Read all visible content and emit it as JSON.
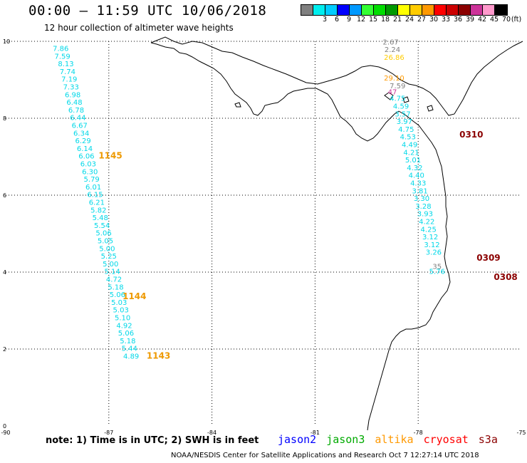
{
  "header": {
    "title": "00:00 — 11:59 UTC 10/06/2018",
    "subtitle": "12 hour collection of altimeter wave heights"
  },
  "colorbar": {
    "unit": "(ft)",
    "bins": [
      {
        "label": "",
        "color": "#808080"
      },
      {
        "label": "3",
        "color": "#00eeee"
      },
      {
        "label": "6",
        "color": "#00ccff"
      },
      {
        "label": "9",
        "color": "#0000ff"
      },
      {
        "label": "12",
        "color": "#0099ff"
      },
      {
        "label": "15",
        "color": "#33ff33"
      },
      {
        "label": "18",
        "color": "#00dd00"
      },
      {
        "label": "21",
        "color": "#009900"
      },
      {
        "label": "24",
        "color": "#ffff00"
      },
      {
        "label": "27",
        "color": "#ffcc00"
      },
      {
        "label": "30",
        "color": "#ff9900"
      },
      {
        "label": "33",
        "color": "#ff0000"
      },
      {
        "label": "36",
        "color": "#cc0000"
      },
      {
        "label": "39",
        "color": "#8b0000"
      },
      {
        "label": "42",
        "color": "#cc3399"
      },
      {
        "label": "45",
        "color": "#ff99cc"
      },
      {
        "label": "70",
        "color": "#000000"
      }
    ]
  },
  "axes": {
    "x_ticks": [
      "-90",
      "-87",
      "-84",
      "-81",
      "-78",
      "-75"
    ],
    "y_ticks": [
      "0",
      "2",
      "4",
      "6",
      "8",
      "10"
    ],
    "xlim": [
      -90,
      -75
    ],
    "ylim": [
      0,
      10
    ],
    "grid": "dotted"
  },
  "tracks": [
    {
      "satellite": "jason3",
      "color": "#00d8e8",
      "readings": [
        {
          "lon": -88.4,
          "lat": 9.75,
          "swh": "7.86"
        },
        {
          "lon": -88.35,
          "lat": 9.55,
          "swh": "7.59"
        },
        {
          "lon": -88.25,
          "lat": 9.35,
          "swh": "8.13"
        },
        {
          "lon": -88.2,
          "lat": 9.15,
          "swh": "7.74"
        },
        {
          "lon": -88.15,
          "lat": 8.95,
          "swh": "7.19"
        },
        {
          "lon": -88.1,
          "lat": 8.75,
          "swh": "7.33"
        },
        {
          "lon": -88.05,
          "lat": 8.55,
          "swh": "6.98"
        },
        {
          "lon": -88.0,
          "lat": 8.35,
          "swh": "6.48"
        },
        {
          "lon": -87.95,
          "lat": 8.15,
          "swh": "6.78"
        },
        {
          "lon": -87.9,
          "lat": 7.95,
          "swh": "6.44"
        },
        {
          "lon": -87.85,
          "lat": 7.75,
          "swh": "6.67"
        },
        {
          "lon": -87.8,
          "lat": 7.55,
          "swh": "6.34"
        },
        {
          "lon": -87.75,
          "lat": 7.35,
          "swh": "6.29"
        },
        {
          "lon": -87.7,
          "lat": 7.15,
          "swh": "6.14"
        },
        {
          "lon": -87.65,
          "lat": 6.95,
          "swh": "6.06"
        },
        {
          "lon": -87.6,
          "lat": 6.75,
          "swh": "6.03"
        },
        {
          "lon": -87.55,
          "lat": 6.55,
          "swh": "6.30"
        },
        {
          "lon": -87.5,
          "lat": 6.35,
          "swh": "5.79"
        },
        {
          "lon": -87.45,
          "lat": 6.15,
          "swh": "6.01"
        },
        {
          "lon": -87.4,
          "lat": 5.95,
          "swh": "6.15"
        },
        {
          "lon": -87.35,
          "lat": 5.75,
          "swh": "6.21"
        },
        {
          "lon": -87.3,
          "lat": 5.55,
          "swh": "5.82"
        },
        {
          "lon": -87.25,
          "lat": 5.35,
          "swh": "5.48"
        },
        {
          "lon": -87.2,
          "lat": 5.15,
          "swh": "5.54"
        },
        {
          "lon": -87.15,
          "lat": 4.95,
          "swh": "5.06"
        },
        {
          "lon": -87.1,
          "lat": 4.75,
          "swh": "5.05"
        },
        {
          "lon": -87.05,
          "lat": 4.55,
          "swh": "5.00"
        },
        {
          "lon": -87.0,
          "lat": 4.35,
          "swh": "5.25"
        },
        {
          "lon": -86.95,
          "lat": 4.15,
          "swh": "5.00"
        },
        {
          "lon": -86.9,
          "lat": 3.95,
          "swh": "5.14"
        },
        {
          "lon": -86.85,
          "lat": 3.75,
          "swh": "4.72"
        },
        {
          "lon": -86.8,
          "lat": 3.55,
          "swh": "5.18"
        },
        {
          "lon": -86.75,
          "lat": 3.35,
          "swh": "5.06"
        },
        {
          "lon": -86.7,
          "lat": 3.15,
          "swh": "5.03"
        },
        {
          "lon": -86.65,
          "lat": 2.95,
          "swh": "5.03"
        },
        {
          "lon": -86.6,
          "lat": 2.75,
          "swh": "5.10"
        },
        {
          "lon": -86.55,
          "lat": 2.55,
          "swh": "4.92"
        },
        {
          "lon": -86.5,
          "lat": 2.35,
          "swh": "5.06"
        },
        {
          "lon": -86.45,
          "lat": 2.15,
          "swh": "5.18"
        },
        {
          "lon": -86.4,
          "lat": 1.95,
          "swh": "5.44"
        },
        {
          "lon": -86.35,
          "lat": 1.75,
          "swh": "4.89"
        }
      ],
      "time_labels": [
        {
          "lon": -87.3,
          "lat": 6.95,
          "text": "1145",
          "color": "#ee9900"
        },
        {
          "lon": -86.6,
          "lat": 3.3,
          "text": "1144",
          "color": "#ee9900"
        },
        {
          "lon": -85.9,
          "lat": 1.75,
          "text": "1143",
          "color": "#ee9900"
        }
      ]
    },
    {
      "satellite": "jason3",
      "color": "#00d8e8",
      "readings": [
        {
          "lon": -78.6,
          "lat": 8.45,
          "swh": "4.75"
        },
        {
          "lon": -78.5,
          "lat": 8.25,
          "swh": "4.59"
        },
        {
          "lon": -78.45,
          "lat": 8.05,
          "swh": "3.57"
        },
        {
          "lon": -78.4,
          "lat": 7.85,
          "swh": "3.97"
        },
        {
          "lon": -78.35,
          "lat": 7.65,
          "swh": "4.75"
        },
        {
          "lon": -78.3,
          "lat": 7.45,
          "swh": "4.53"
        },
        {
          "lon": -78.25,
          "lat": 7.25,
          "swh": "4.49"
        },
        {
          "lon": -78.2,
          "lat": 7.05,
          "swh": "4.21"
        },
        {
          "lon": -78.15,
          "lat": 6.85,
          "swh": "5.01"
        },
        {
          "lon": -78.1,
          "lat": 6.65,
          "swh": "4.32"
        },
        {
          "lon": -78.05,
          "lat": 6.45,
          "swh": "4.40"
        },
        {
          "lon": -78.0,
          "lat": 6.25,
          "swh": "4.33"
        },
        {
          "lon": -77.95,
          "lat": 6.05,
          "swh": "3.81"
        },
        {
          "lon": -77.9,
          "lat": 5.85,
          "swh": "3.30"
        },
        {
          "lon": -77.85,
          "lat": 5.65,
          "swh": "3.28"
        },
        {
          "lon": -77.8,
          "lat": 5.45,
          "swh": "3.93"
        },
        {
          "lon": -77.75,
          "lat": 5.25,
          "swh": "4.22"
        },
        {
          "lon": -77.7,
          "lat": 5.05,
          "swh": "4.25"
        },
        {
          "lon": -77.65,
          "lat": 4.85,
          "swh": "3.12"
        },
        {
          "lon": -77.6,
          "lat": 4.65,
          "swh": "3.12"
        },
        {
          "lon": -77.55,
          "lat": 4.45,
          "swh": "3.26"
        },
        {
          "lon": -77.45,
          "lat": 3.95,
          "swh": "5.76"
        }
      ],
      "time_labels": [
        {
          "lon": -76.8,
          "lat": 7.5,
          "text": "0310",
          "color": "#8b0000"
        },
        {
          "lon": -76.3,
          "lat": 4.3,
          "text": "0309",
          "color": "#8b0000"
        },
        {
          "lon": -75.8,
          "lat": 3.8,
          "text": "0308",
          "color": "#8b0000"
        }
      ]
    },
    {
      "satellite": "misc",
      "color": "#808080",
      "readings": [
        {
          "lon": -78.8,
          "lat": 9.92,
          "swh": "2.67",
          "color": "#808080"
        },
        {
          "lon": -78.75,
          "lat": 9.72,
          "swh": "2.24",
          "color": "#808080"
        },
        {
          "lon": -78.7,
          "lat": 9.52,
          "swh": "26.86",
          "color": "#ffcc00"
        },
        {
          "lon": -78.7,
          "lat": 8.98,
          "swh": "29.10",
          "color": "#ff9900"
        },
        {
          "lon": -78.6,
          "lat": 8.78,
          "swh": "7.59",
          "color": "#808080"
        },
        {
          "lon": -78.75,
          "lat": 8.62,
          "swh": "47",
          "color": "#cc3399"
        },
        {
          "lon": -77.45,
          "lat": 4.08,
          "swh": "35",
          "color": "#808080"
        }
      ],
      "time_labels": []
    }
  ],
  "footer": {
    "note": "note: 1) Time is in UTC; 2) SWH is in feet",
    "satellites": [
      {
        "name": "jason2",
        "color": "#0000ff"
      },
      {
        "name": "jason3",
        "color": "#00aa00"
      },
      {
        "name": "altika",
        "color": "#ff9900"
      },
      {
        "name": "cryosat",
        "color": "#ff0000"
      },
      {
        "name": "s3a",
        "color": "#8b0000"
      }
    ],
    "credit": "NOAA/NESDIS Center for Satellite Applications and Research    Oct  7 12:27:14 UTC 2018"
  }
}
